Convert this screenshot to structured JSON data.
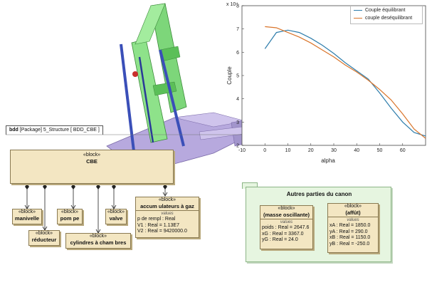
{
  "frame": {
    "kind": "bdd",
    "rest": "[Package] 5_Structure [ BDD_CBE ]"
  },
  "blocks": {
    "cbe": {
      "stereo": "«block»",
      "name": "CBE"
    },
    "manivelle": {
      "stereo": "«block»",
      "name": "manivelle"
    },
    "pompe": {
      "stereo": "«block»",
      "name": "pom pe"
    },
    "valve": {
      "stereo": "«block»",
      "name": "valve"
    },
    "reducteur": {
      "stereo": "«block»",
      "name": "réducteur"
    },
    "cylindres": {
      "stereo": "«block»",
      "name": "cylindres à cham bres"
    },
    "accum": {
      "stereo": "«block»",
      "name": "accum ulateurs à gaz",
      "values_label": "values",
      "attrs": [
        "p de rempl : Real",
        "V1 : Real = 1.13E7",
        "V2 : Real = 9420000.0"
      ]
    }
  },
  "package": {
    "title": "Autres parties du canon",
    "masse": {
      "stereo": "«block»",
      "name": "(masse oscillante)",
      "values_label": "values",
      "attrs": [
        "poids : Real = 2647.6",
        "xG : Real = 3367.0",
        "yG : Real = 24.0"
      ]
    },
    "affut": {
      "stereo": "«block»",
      "name": "(affût)",
      "values_label": "values",
      "attrs": [
        "xA : Real = 1850.0",
        "yA : Real = 290.0",
        "xB : Real = 1150.0",
        "yB : Real = -250.0"
      ]
    }
  },
  "colors": {
    "series1": "#2e7dab",
    "series2": "#d9742a",
    "block_fill": "#f3e6c2",
    "package_fill": "#e6f5e0",
    "cad_green": "#7dd67a",
    "cad_purple": "#b7a9de"
  },
  "chart_data": {
    "type": "line",
    "xlabel": "alpha",
    "ylabel": "Couple",
    "y_multiplier": "x 10⁴",
    "xlim": [
      -10,
      70
    ],
    "ylim": [
      2,
      8
    ],
    "xticks": [
      "-10",
      "0",
      "10",
      "20",
      "30",
      "40",
      "50",
      "60"
    ],
    "yticks": [
      "2",
      "3",
      "4",
      "5",
      "6",
      "7",
      "8"
    ],
    "grid": false,
    "legend_position": "top-right",
    "series": [
      {
        "name": "Couple équilibrant",
        "x": [
          0,
          5,
          10,
          15,
          20,
          25,
          30,
          35,
          40,
          45,
          50,
          55,
          60,
          65,
          70
        ],
        "y": [
          6.15,
          6.85,
          6.95,
          6.85,
          6.6,
          6.3,
          5.95,
          5.55,
          5.2,
          4.85,
          4.25,
          3.6,
          3.0,
          2.55,
          2.4
        ]
      },
      {
        "name": "couple deséquilibrant",
        "x": [
          0,
          5,
          10,
          15,
          20,
          25,
          30,
          35,
          40,
          45,
          50,
          55,
          60,
          65,
          70
        ],
        "y": [
          7.1,
          7.05,
          6.85,
          6.65,
          6.4,
          6.1,
          5.8,
          5.45,
          5.15,
          4.8,
          4.4,
          3.95,
          3.35,
          2.7,
          2.3
        ]
      }
    ]
  }
}
